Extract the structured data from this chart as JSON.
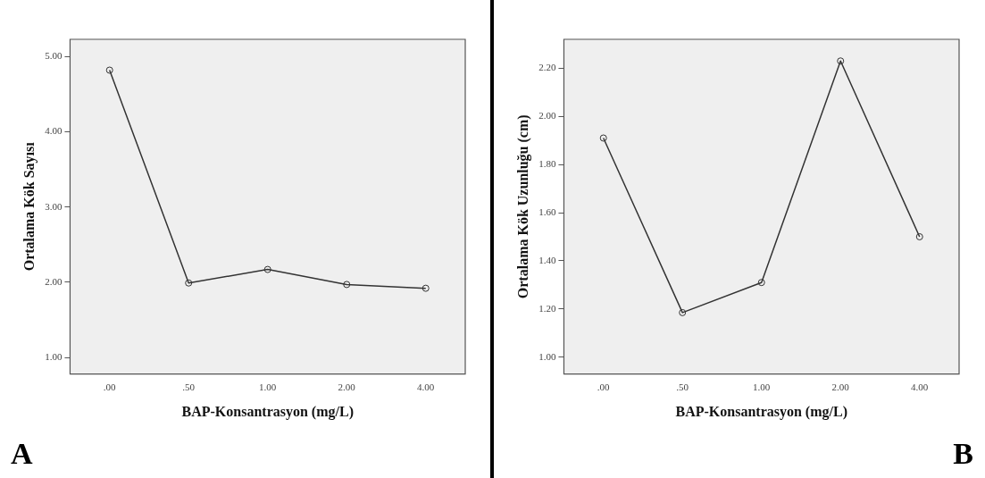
{
  "chart_data": [
    {
      "type": "line",
      "xlabel": "BAP-Konsantrasyon (mg/L)",
      "ylabel": "Ortalama Kök Sayısı",
      "categories": [
        ".00",
        ".50",
        "1.00",
        "2.00",
        "4.00"
      ],
      "values": [
        4.82,
        1.99,
        2.17,
        1.97,
        1.92
      ],
      "color": "#333333",
      "marker": "circle",
      "grid": false,
      "ylim": [
        0.78,
        5.23
      ],
      "yticks": [
        {
          "value": 1,
          "label": "1.00"
        },
        {
          "value": 2,
          "label": "2.00"
        },
        {
          "value": 3,
          "label": "3.00"
        },
        {
          "value": 4,
          "label": "4.00"
        },
        {
          "value": 5,
          "label": "5.00"
        }
      ],
      "annotations": [
        "A"
      ]
    },
    {
      "type": "line",
      "xlabel": "BAP-Konsantrasyon (mg/L)",
      "ylabel": "Ortalama Kök Uzunluğu (cm)",
      "categories": [
        ".00",
        ".50",
        "1.00",
        "2.00",
        "4.00"
      ],
      "values": [
        1.91,
        1.185,
        1.31,
        2.23,
        1.5
      ],
      "color": "#333333",
      "marker": "circle",
      "grid": false,
      "ylim": [
        0.93,
        2.32
      ],
      "yticks": [
        {
          "value": 1,
          "label": "1.00"
        },
        {
          "value": 1.2,
          "label": "1.20"
        },
        {
          "value": 1.4,
          "label": "1.40"
        },
        {
          "value": 1.6,
          "label": "1.60"
        },
        {
          "value": 1.8,
          "label": "1.80"
        },
        {
          "value": 2,
          "label": "2.00"
        },
        {
          "value": 2.2,
          "label": "2.20"
        }
      ],
      "annotations": [
        "B"
      ]
    }
  ]
}
